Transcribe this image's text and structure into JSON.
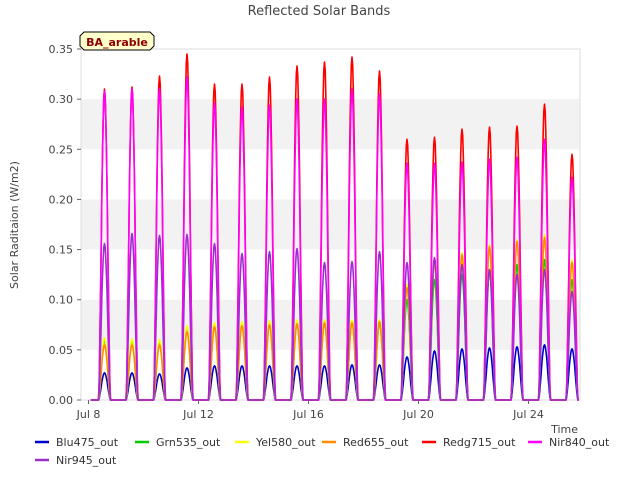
{
  "chart_data": {
    "type": "line",
    "title": "Reflected Solar Bands",
    "xlabel": "Time",
    "ylabel": "Solar Raditaion (W/m2)",
    "site_badge": "BA_arable",
    "ylim": [
      0,
      0.35
    ],
    "yticks": [
      "0.00",
      "0.05",
      "0.10",
      "0.15",
      "0.20",
      "0.25",
      "0.30",
      "0.35"
    ],
    "xlim": [
      "Jul 8",
      "Jul 26"
    ],
    "xticks": [
      "Jul 8",
      "Jul 12",
      "Jul 16",
      "Jul 20",
      "Jul 24"
    ],
    "grid": "horizontal bands",
    "legend_position": "bottom",
    "days": [
      "Jul 8",
      "Jul 9",
      "Jul 10",
      "Jul 11",
      "Jul 12",
      "Jul 13",
      "Jul 14",
      "Jul 15",
      "Jul 16",
      "Jul 17",
      "Jul 18",
      "Jul 19",
      "Jul 20",
      "Jul 21",
      "Jul 22",
      "Jul 23",
      "Jul 24",
      "Jul 25"
    ],
    "series": [
      {
        "name": "Blu475_out",
        "color": "#0000cc",
        "daily_peak": [
          0.027,
          0.027,
          0.026,
          0.032,
          0.034,
          0.034,
          0.034,
          0.034,
          0.034,
          0.035,
          0.035,
          0.043,
          0.049,
          0.051,
          0.052,
          0.053,
          0.055,
          0.051
        ]
      },
      {
        "name": "Grn535_out",
        "color": "#00cc00",
        "daily_peak": [
          0.06,
          0.058,
          0.057,
          0.072,
          0.076,
          0.077,
          0.077,
          0.077,
          0.078,
          0.078,
          0.077,
          0.1,
          0.12,
          0.125,
          0.13,
          0.135,
          0.14,
          0.12
        ]
      },
      {
        "name": "Yel580_out",
        "color": "#ffff00",
        "daily_peak": [
          0.062,
          0.061,
          0.06,
          0.074,
          0.077,
          0.078,
          0.079,
          0.08,
          0.08,
          0.08,
          0.08,
          0.115,
          0.14,
          0.147,
          0.155,
          0.16,
          0.165,
          0.14
        ]
      },
      {
        "name": "Red655_out",
        "color": "#ff8c00",
        "daily_peak": [
          0.055,
          0.055,
          0.055,
          0.068,
          0.073,
          0.074,
          0.075,
          0.076,
          0.077,
          0.077,
          0.078,
          0.112,
          0.138,
          0.145,
          0.153,
          0.158,
          0.162,
          0.137
        ]
      },
      {
        "name": "Redg715_out",
        "color": "#ff0000",
        "daily_peak": [
          0.31,
          0.312,
          0.323,
          0.345,
          0.315,
          0.315,
          0.322,
          0.333,
          0.337,
          0.342,
          0.328,
          0.26,
          0.262,
          0.27,
          0.272,
          0.273,
          0.295,
          0.245
        ]
      },
      {
        "name": "Nir840_out",
        "color": "#ff00ff",
        "daily_peak": [
          0.308,
          0.31,
          0.31,
          0.322,
          0.296,
          0.292,
          0.294,
          0.3,
          0.3,
          0.31,
          0.305,
          0.236,
          0.236,
          0.237,
          0.24,
          0.242,
          0.26,
          0.222
        ]
      },
      {
        "name": "Nir945_out",
        "color": "#9932cc",
        "daily_peak": [
          0.156,
          0.166,
          0.164,
          0.165,
          0.156,
          0.146,
          0.148,
          0.151,
          0.137,
          0.138,
          0.148,
          0.137,
          0.142,
          0.135,
          0.13,
          0.125,
          0.13,
          0.108
        ]
      }
    ]
  }
}
